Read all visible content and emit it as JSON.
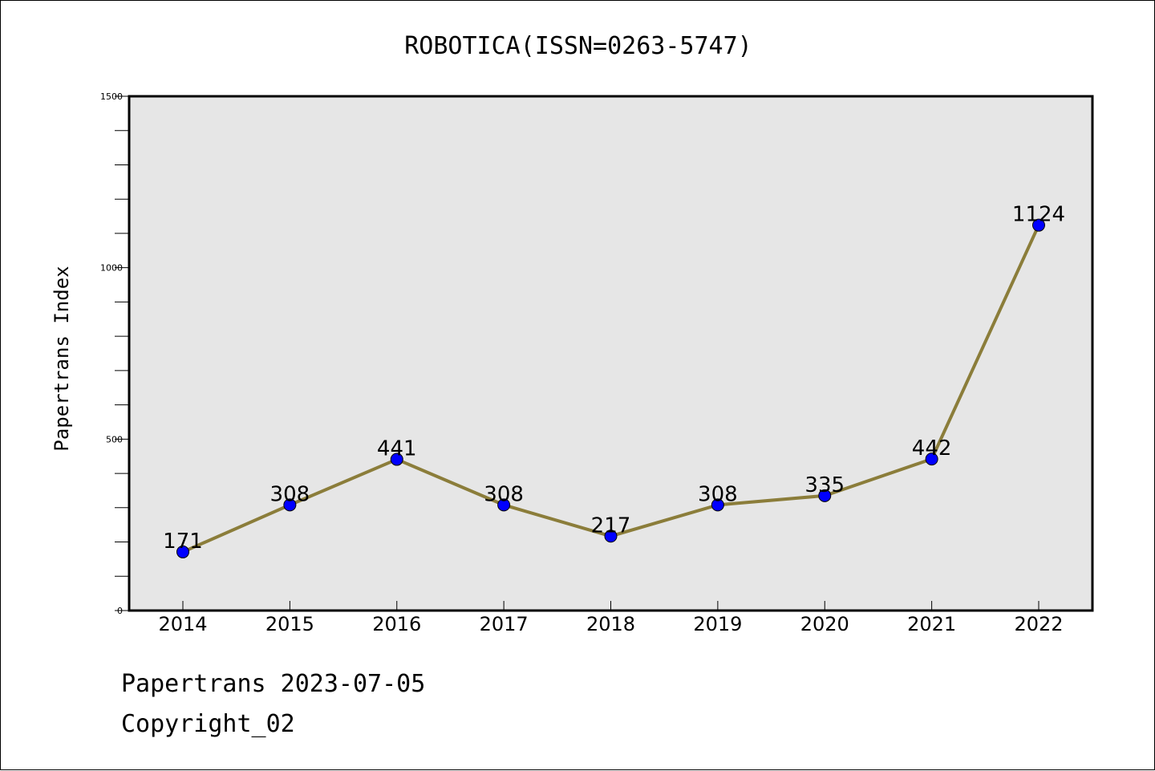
{
  "chart_data": {
    "type": "line",
    "title": "ROBOTICA(ISSN=0263-5747)",
    "xlabel": "",
    "ylabel": "Papertrans Index",
    "categories": [
      "2014",
      "2015",
      "2016",
      "2017",
      "2018",
      "2019",
      "2020",
      "2021",
      "2022"
    ],
    "values": [
      171,
      308,
      441,
      308,
      217,
      308,
      335,
      442,
      1124
    ],
    "data_labels": [
      "171",
      "308",
      "441",
      "308",
      "217",
      "308",
      "335",
      "442",
      "1124"
    ],
    "ylim": [
      0,
      1500
    ],
    "yticks": [
      0,
      500,
      1000,
      1500
    ],
    "ytick_labels": [
      "0",
      "500",
      "1000",
      "1500"
    ],
    "grid": false,
    "colors": {
      "line": "#8b7d3a",
      "marker": "#0000ff",
      "plot_bg": "#e6e6e6"
    }
  },
  "footer": {
    "date_line": "Papertrans 2023-07-05",
    "copyright_line": "Copyright_02"
  }
}
